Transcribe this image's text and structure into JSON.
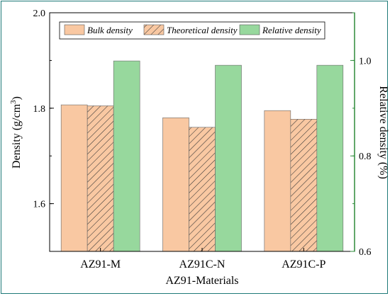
{
  "chart_data": {
    "type": "bar",
    "categories": [
      "AZ91-M",
      "AZ91C-N",
      "AZ91C-P"
    ],
    "xlabel": "AZ91-Materials",
    "ylabel_left": "Density (g/cm",
    "ylabel_left_superscript": "3",
    "ylabel_left_close": ")",
    "ylabel_right": "Relative density (%)",
    "ylim_left": [
      1.5,
      2.0
    ],
    "ylim_right": [
      0.6,
      1.1
    ],
    "left_ticks": [
      "1.6",
      "1.8",
      "2.0"
    ],
    "right_ticks": [
      "0.6",
      "0.8",
      "1.0"
    ],
    "series": [
      {
        "name": "Bulk density",
        "axis": "left",
        "values": [
          1.807,
          1.78,
          1.795
        ],
        "color": "#f9c8a2",
        "pattern": "solid"
      },
      {
        "name": "Theoretical density",
        "axis": "left",
        "values": [
          1.805,
          1.76,
          1.777
        ],
        "color": "#f9c8a2",
        "pattern": "hatch"
      },
      {
        "name": "Relative density",
        "axis": "right",
        "values": [
          0.999,
          0.99,
          0.99
        ],
        "color": "#97d89d",
        "pattern": "solid"
      }
    ],
    "legend_position": "top",
    "grid": false,
    "right_axis_color": "#2e8b3a"
  }
}
